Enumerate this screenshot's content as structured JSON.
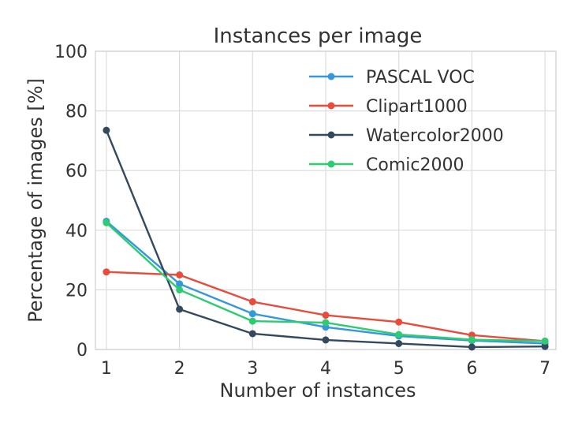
{
  "chart_data": {
    "type": "line",
    "title": "Instances per image",
    "xlabel": "Number of instances",
    "ylabel": "Percentage of images [%]",
    "x": [
      1,
      2,
      3,
      4,
      5,
      6,
      7
    ],
    "xlim": [
      0.85,
      7.15
    ],
    "ylim": [
      0,
      100
    ],
    "xticks": [
      "1",
      "2",
      "3",
      "4",
      "5",
      "6",
      "7"
    ],
    "yticks": [
      "0",
      "20",
      "40",
      "60",
      "80",
      "100"
    ],
    "grid": true,
    "legend_position": "top-right",
    "series": [
      {
        "name": "PASCAL VOC",
        "color": "#3498db",
        "values": [
          43.0,
          22.0,
          12.0,
          7.5,
          4.5,
          3.0,
          2.0
        ]
      },
      {
        "name": "Clipart1000",
        "color": "#e74c3c",
        "values": [
          26.0,
          25.0,
          16.0,
          11.5,
          9.2,
          4.8,
          2.8
        ]
      },
      {
        "name": "Watercolor2000",
        "color": "#34495e",
        "values": [
          73.5,
          13.5,
          5.3,
          3.2,
          2.0,
          0.8,
          1.0
        ]
      },
      {
        "name": "Comic2000",
        "color": "#2ecc71",
        "values": [
          42.5,
          20.0,
          9.5,
          9.0,
          5.0,
          3.3,
          2.8
        ]
      }
    ]
  }
}
